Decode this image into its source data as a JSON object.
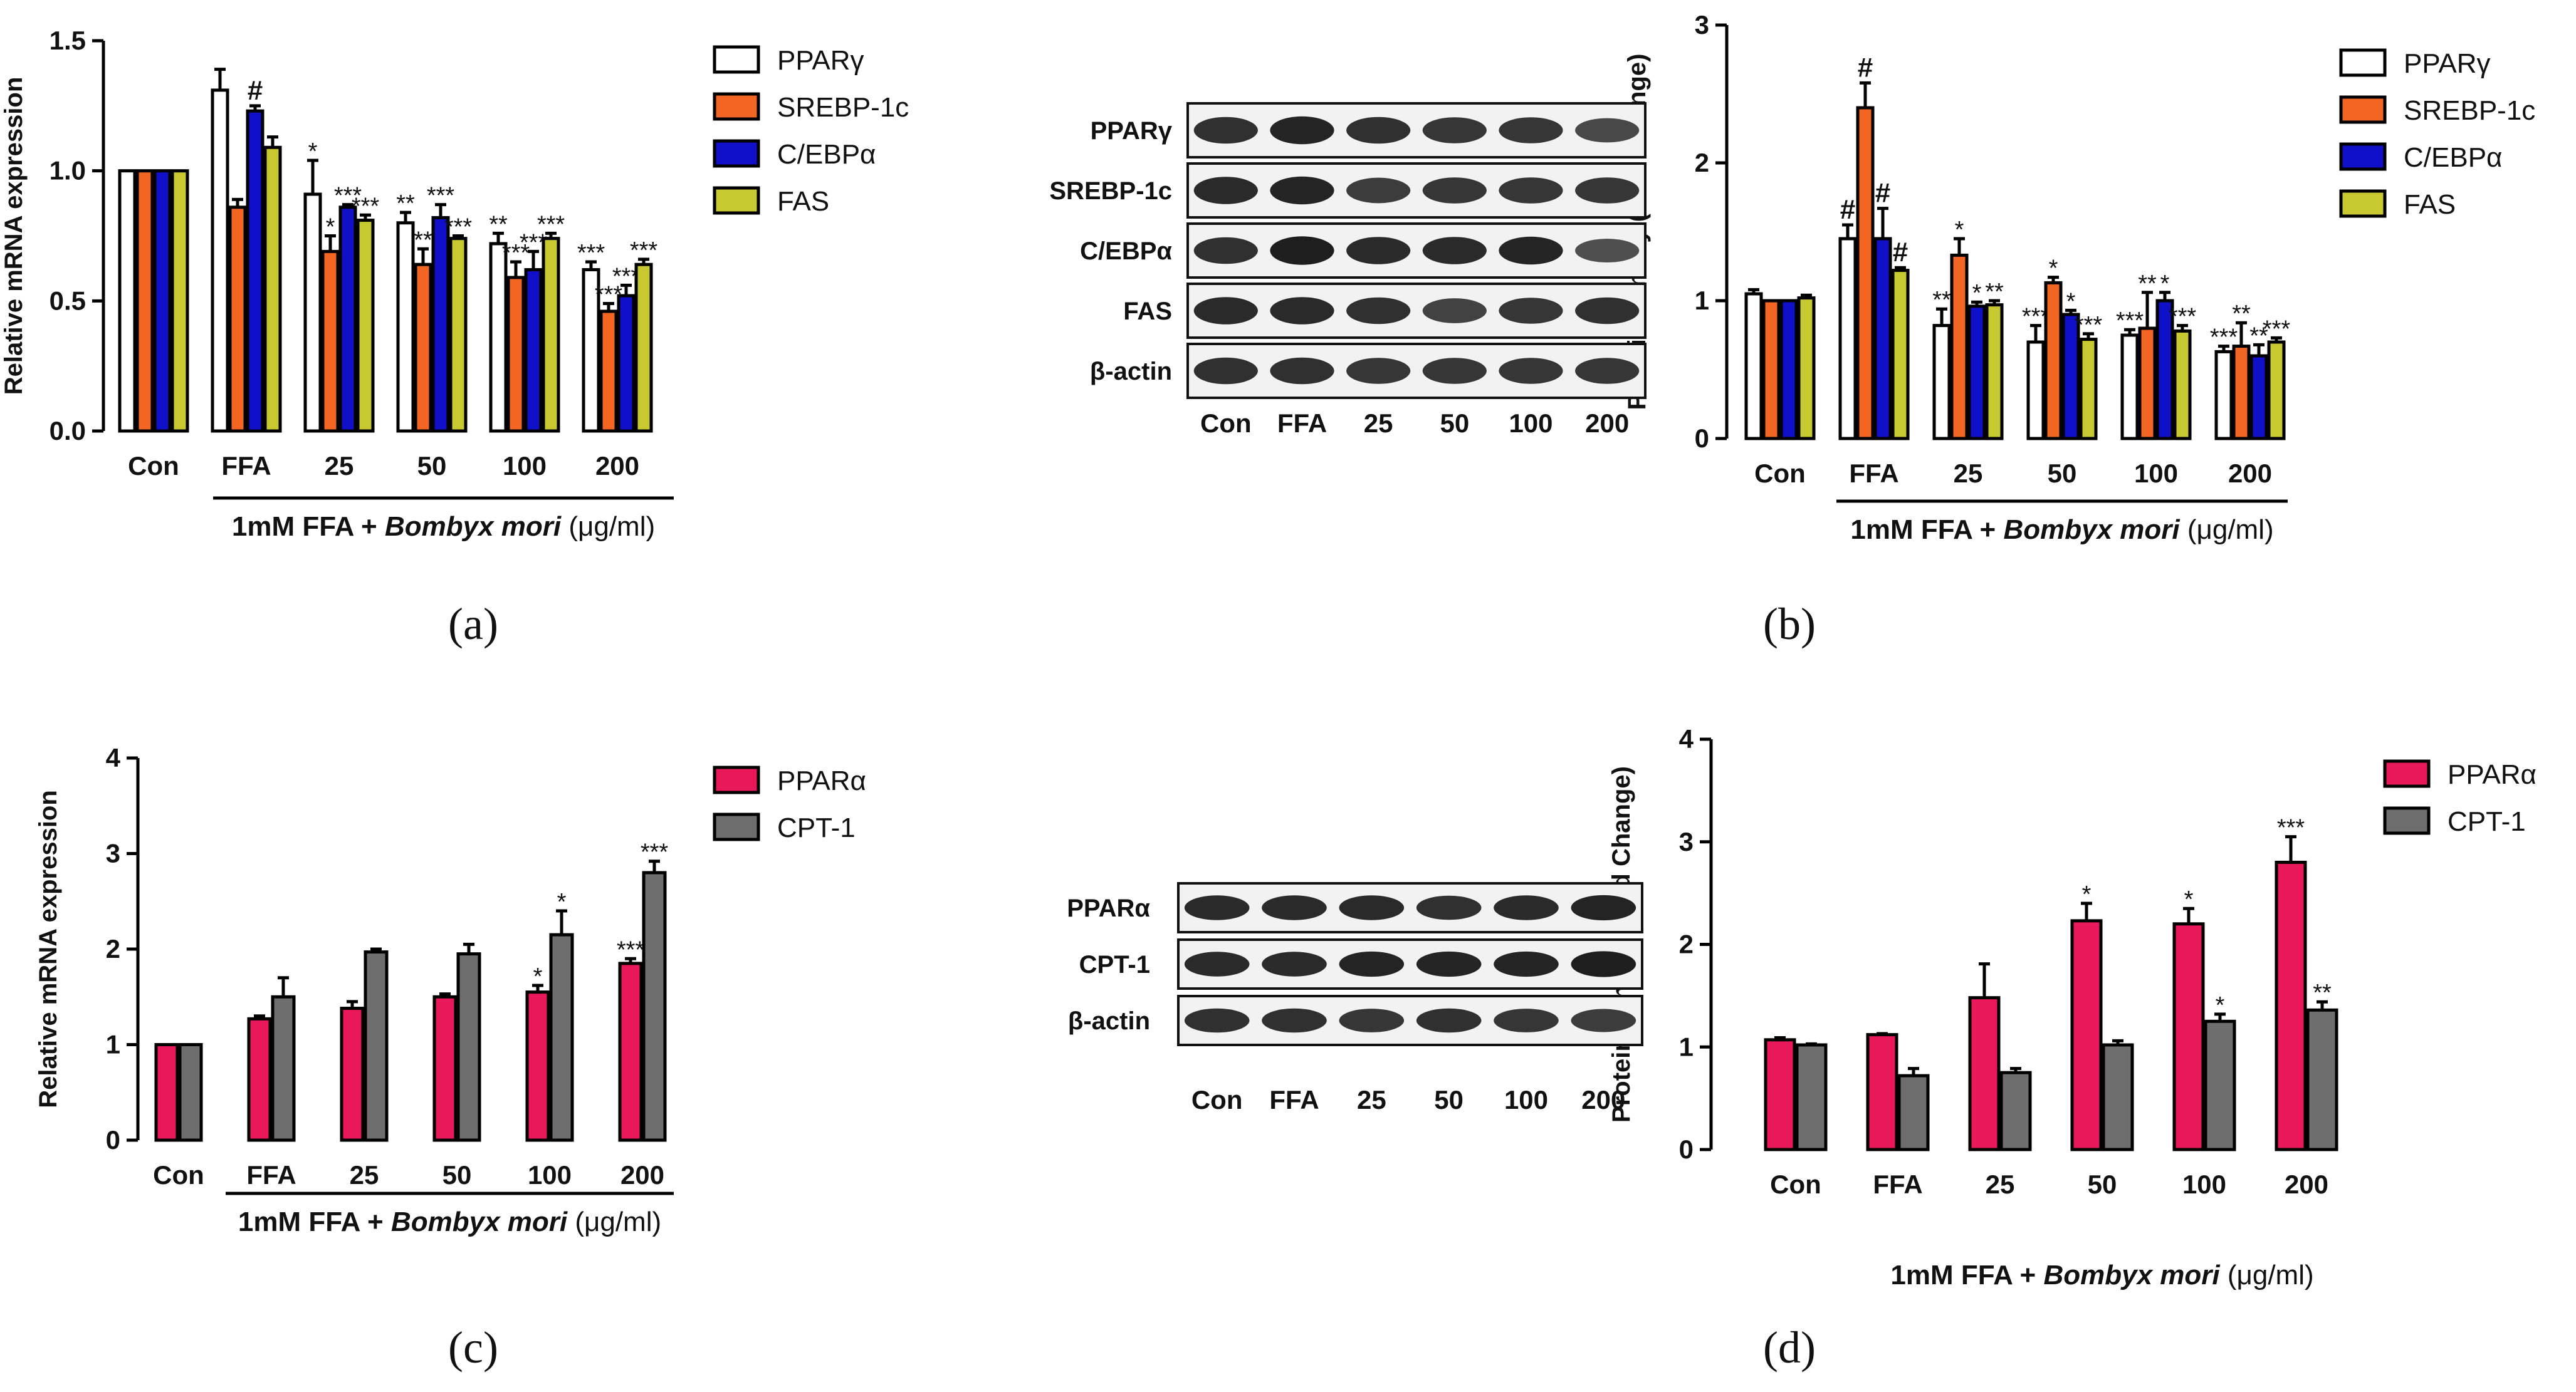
{
  "figure": {
    "panel_labels": [
      "(a)",
      "(b)",
      "(c)",
      "(d)"
    ],
    "italic_label": "Bombyx mori",
    "label_prefix": "1mM FFA + ",
    "label_suffix": " (μg/ml)"
  },
  "blots": [
    {
      "id": "b",
      "rows": [
        "PPARγ",
        "SREBP-1c",
        "C/EBPα",
        "FAS",
        "β-actin"
      ],
      "lanes": [
        "Con",
        "FFA",
        "25",
        "50",
        "100",
        "200"
      ],
      "intensity": [
        [
          0.85,
          0.95,
          0.85,
          0.8,
          0.8,
          0.65
        ],
        [
          0.9,
          0.95,
          0.75,
          0.8,
          0.8,
          0.8
        ],
        [
          0.85,
          1.0,
          0.9,
          0.9,
          0.95,
          0.6
        ],
        [
          0.9,
          0.9,
          0.85,
          0.7,
          0.8,
          0.85
        ],
        [
          0.85,
          0.85,
          0.8,
          0.8,
          0.8,
          0.8
        ]
      ]
    },
    {
      "id": "d",
      "rows": [
        "PPARα",
        "CPT-1",
        "β-actin"
      ],
      "lanes": [
        "Con",
        "FFA",
        "25",
        "50",
        "100",
        "200"
      ],
      "intensity": [
        [
          0.9,
          0.9,
          0.9,
          0.85,
          0.9,
          0.95
        ],
        [
          0.9,
          0.9,
          0.95,
          0.95,
          0.95,
          1.0
        ],
        [
          0.85,
          0.85,
          0.8,
          0.85,
          0.8,
          0.75
        ]
      ]
    }
  ],
  "chart_data": [
    {
      "id": "a",
      "type": "bar",
      "ylabel": "Relative mRNA expression",
      "ylim": [
        0,
        1.5
      ],
      "yticks": [
        "0.0",
        "0.5",
        "1.0",
        "1.5"
      ],
      "categories": [
        "Con",
        "FFA",
        "25",
        "50",
        "100",
        "200"
      ],
      "xlabel": "1mM FFA + Bombyx mori (μg/ml)",
      "series": [
        {
          "name": "PPARγ",
          "color": "#ffffff",
          "values": [
            1.0,
            1.31,
            0.91,
            0.8,
            0.72,
            0.62
          ],
          "errors": [
            0,
            0.08,
            0.13,
            0.04,
            0.04,
            0.03
          ],
          "marks": [
            "",
            "",
            "*",
            "**",
            "**",
            "***"
          ]
        },
        {
          "name": "SREBP-1c",
          "color": "#f26522",
          "values": [
            1.0,
            0.86,
            0.69,
            0.64,
            0.59,
            0.46
          ],
          "errors": [
            0,
            0.03,
            0.06,
            0.06,
            0.06,
            0.03
          ],
          "marks": [
            "",
            "",
            "*",
            "**",
            "***",
            "***"
          ]
        },
        {
          "name": "C/EBPα",
          "color": "#1010c8",
          "values": [
            1.0,
            1.23,
            0.86,
            0.82,
            0.62,
            0.52
          ],
          "errors": [
            0,
            0.02,
            0.01,
            0.05,
            0.07,
            0.04
          ],
          "marks": [
            "",
            "#",
            "***",
            "***",
            "***",
            "***"
          ]
        },
        {
          "name": "FAS",
          "color": "#c8c830",
          "values": [
            1.0,
            1.09,
            0.81,
            0.74,
            0.74,
            0.64
          ],
          "errors": [
            0,
            0.04,
            0.02,
            0.01,
            0.02,
            0.02
          ],
          "marks": [
            "",
            "",
            "***",
            "***",
            "***",
            "***"
          ]
        }
      ]
    },
    {
      "id": "b",
      "type": "bar",
      "ylabel": "Protein density (Fold Change)",
      "ylim": [
        0,
        3
      ],
      "yticks": [
        "0",
        "1",
        "2",
        "3"
      ],
      "categories": [
        "Con",
        "FFA",
        "25",
        "50",
        "100",
        "200"
      ],
      "xlabel": "1mM FFA + Bombyx mori (μg/ml)",
      "series": [
        {
          "name": "PPARγ",
          "color": "#ffffff",
          "values": [
            1.05,
            1.45,
            0.82,
            0.7,
            0.75,
            0.63
          ],
          "errors": [
            0.03,
            0.1,
            0.12,
            0.12,
            0.04,
            0.04
          ],
          "marks": [
            "",
            "#",
            "**",
            "***",
            "***",
            "***"
          ]
        },
        {
          "name": "SREBP-1c",
          "color": "#f26522",
          "values": [
            1.0,
            2.4,
            1.33,
            1.13,
            0.8,
            0.67
          ],
          "errors": [
            0,
            0.18,
            0.12,
            0.04,
            0.26,
            0.17
          ],
          "marks": [
            "",
            "#",
            "*",
            "*",
            "**",
            "**"
          ]
        },
        {
          "name": "C/EBPα",
          "color": "#1010c8",
          "values": [
            1.0,
            1.45,
            0.96,
            0.9,
            1.0,
            0.6
          ],
          "errors": [
            0,
            0.22,
            0.03,
            0.03,
            0.06,
            0.08
          ],
          "marks": [
            "",
            "#",
            "*",
            "*",
            "*",
            "**"
          ]
        },
        {
          "name": "FAS",
          "color": "#c8c830",
          "values": [
            1.02,
            1.22,
            0.97,
            0.72,
            0.78,
            0.7
          ],
          "errors": [
            0.02,
            0.02,
            0.03,
            0.04,
            0.04,
            0.03
          ],
          "marks": [
            "",
            "#",
            "**",
            "***",
            "***",
            "***"
          ]
        }
      ]
    },
    {
      "id": "c",
      "type": "bar",
      "ylabel": "Relative mRNA expression",
      "ylim": [
        0,
        4
      ],
      "yticks": [
        "0",
        "1",
        "2",
        "3",
        "4"
      ],
      "categories": [
        "Con",
        "FFA",
        "25",
        "50",
        "100",
        "200"
      ],
      "xlabel": "1mM FFA + Bombyx mori (μg/ml)",
      "series": [
        {
          "name": "PPARα",
          "color": "#e8185a",
          "values": [
            1.0,
            1.27,
            1.38,
            1.5,
            1.55,
            1.85
          ],
          "errors": [
            0,
            0.03,
            0.07,
            0.03,
            0.07,
            0.05
          ],
          "marks": [
            "",
            "",
            "",
            "",
            "*",
            "***"
          ]
        },
        {
          "name": "CPT-1",
          "color": "#6e6e6e",
          "values": [
            1.0,
            1.5,
            1.97,
            1.95,
            2.15,
            2.8
          ],
          "errors": [
            0,
            0.2,
            0.03,
            0.1,
            0.25,
            0.12
          ],
          "marks": [
            "",
            "",
            "",
            "",
            "*",
            "***"
          ]
        }
      ]
    },
    {
      "id": "d",
      "type": "bar",
      "ylabel": "Protein density (Fold Change)",
      "ylim": [
        0,
        4
      ],
      "yticks": [
        "0",
        "1",
        "2",
        "3",
        "4"
      ],
      "categories": [
        "Con",
        "FFA",
        "25",
        "50",
        "100",
        "200"
      ],
      "xlabel": "1mM FFA + Bombyx mori (μg/ml)",
      "series": [
        {
          "name": "PPARα",
          "color": "#e8185a",
          "values": [
            1.07,
            1.12,
            1.48,
            2.23,
            2.2,
            2.8
          ],
          "errors": [
            0.02,
            0.01,
            0.33,
            0.17,
            0.15,
            0.25
          ],
          "marks": [
            "",
            "",
            "",
            "*",
            "*",
            "***"
          ]
        },
        {
          "name": "CPT-1",
          "color": "#6e6e6e",
          "values": [
            1.02,
            0.72,
            0.75,
            1.02,
            1.25,
            1.36
          ],
          "errors": [
            0.01,
            0.07,
            0.04,
            0.04,
            0.07,
            0.08
          ],
          "marks": [
            "",
            "",
            "",
            "",
            "*",
            "**"
          ]
        }
      ]
    }
  ]
}
